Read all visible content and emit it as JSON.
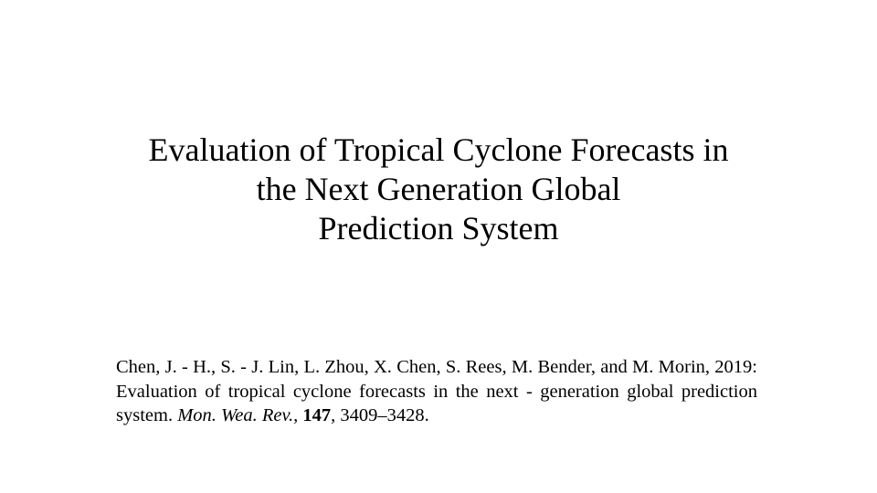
{
  "slide": {
    "title_lines": [
      "Evaluation of Tropical Cyclone Forecasts in",
      "the Next Generation Global",
      "Prediction System"
    ],
    "citation": [
      {
        "style": "normal",
        "text": "Chen, J. - H., S. - J. Lin, L. Zhou, X. Chen, S. Rees, M. Bender, and M. Morin, 2019: Evaluation of tropical cyclone forecasts in the next - generation global prediction system. "
      },
      {
        "style": "italic",
        "text": "Mon. Wea. Rev., "
      },
      {
        "style": "bold",
        "text": "147"
      },
      {
        "style": "normal",
        "text": ", 3409–3428."
      }
    ]
  }
}
